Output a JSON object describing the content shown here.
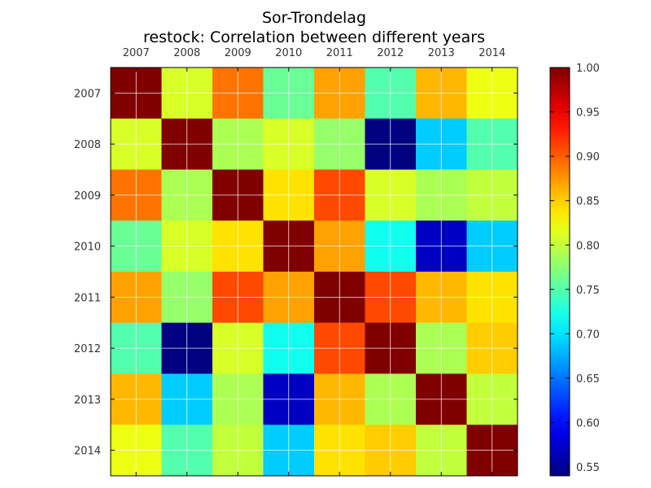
{
  "chart_data": {
    "type": "heatmap",
    "title": "Sor-Trondelag",
    "subtitle": "restock: Correlation between different years",
    "x_categories": [
      "2007",
      "2008",
      "2009",
      "2010",
      "2011",
      "2012",
      "2013",
      "2014"
    ],
    "y_categories": [
      "2007",
      "2008",
      "2009",
      "2010",
      "2011",
      "2012",
      "2013",
      "2014"
    ],
    "values": [
      [
        1.0,
        0.81,
        0.89,
        0.76,
        0.87,
        0.75,
        0.86,
        0.82
      ],
      [
        0.81,
        1.0,
        0.79,
        0.81,
        0.78,
        0.54,
        0.69,
        0.75
      ],
      [
        0.89,
        0.79,
        1.0,
        0.84,
        0.91,
        0.81,
        0.79,
        0.8
      ],
      [
        0.76,
        0.81,
        0.84,
        1.0,
        0.87,
        0.72,
        0.57,
        0.69
      ],
      [
        0.87,
        0.78,
        0.91,
        0.87,
        1.0,
        0.91,
        0.86,
        0.84
      ],
      [
        0.75,
        0.54,
        0.81,
        0.72,
        0.91,
        1.0,
        0.79,
        0.85
      ],
      [
        0.86,
        0.69,
        0.79,
        0.57,
        0.86,
        0.79,
        1.0,
        0.8
      ],
      [
        0.82,
        0.75,
        0.8,
        0.69,
        0.84,
        0.85,
        0.8,
        1.0
      ]
    ],
    "colormap": "jet",
    "vmin": 0.54,
    "vmax": 1.0,
    "colorbar_ticks": [
      "1.00",
      "0.95",
      "0.90",
      "0.85",
      "0.80",
      "0.75",
      "0.70",
      "0.65",
      "0.60",
      "0.55"
    ],
    "x_tick_position": "top",
    "grid": true,
    "colorbar": "right"
  }
}
